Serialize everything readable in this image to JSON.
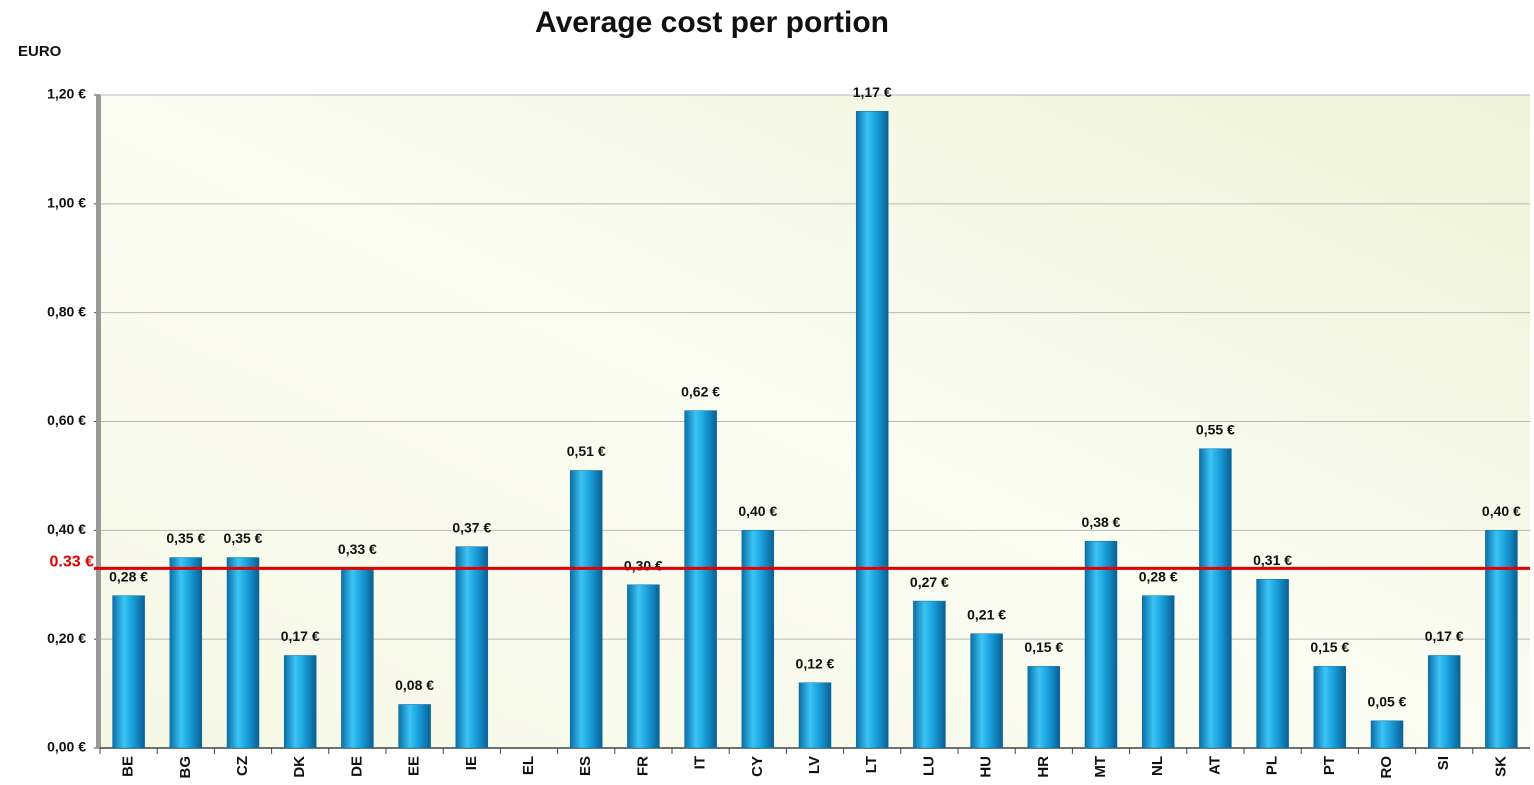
{
  "chart_data": {
    "type": "bar",
    "title": "Average cost per portion",
    "y_axis_label": "EURO",
    "categories": [
      "BE",
      "BG",
      "CZ",
      "DK",
      "DE",
      "EE",
      "IE",
      "EL",
      "ES",
      "FR",
      "IT",
      "CY",
      "LV",
      "LT",
      "LU",
      "HU",
      "HR",
      "MT",
      "NL",
      "AT",
      "PL",
      "PT",
      "RO",
      "SI",
      "SK"
    ],
    "values": [
      0.28,
      0.35,
      0.35,
      0.17,
      0.33,
      0.08,
      0.37,
      null,
      0.51,
      0.3,
      0.62,
      0.4,
      0.12,
      1.17,
      0.27,
      0.21,
      0.15,
      0.38,
      0.28,
      0.55,
      0.31,
      0.15,
      0.05,
      0.17,
      0.4
    ],
    "value_labels": [
      "0,28 €",
      "0,35 €",
      "0,35 €",
      "0,17 €",
      "0,33 €",
      "0,08 €",
      "0,37 €",
      null,
      "0,51 €",
      "0,30 €",
      "0,62 €",
      "0,40 €",
      "0,12 €",
      "1,17 €",
      "0,27 €",
      "0,21 €",
      "0,15 €",
      "0,38 €",
      "0,28 €",
      "0,55 €",
      "0,31 €",
      "0,15 €",
      "0,05 €",
      "0,17 €",
      "0,40 €"
    ],
    "color": "#1aa3e0",
    "ylim": [
      0,
      1.2
    ],
    "yticks": [
      {
        "value": 0,
        "label": "0,00 €"
      },
      {
        "value": 0.2,
        "label": "0,20 €"
      },
      {
        "value": 0.4,
        "label": "0,40 €"
      },
      {
        "value": 0.6,
        "label": "0,60 €"
      },
      {
        "value": 0.8,
        "label": "0,80 €"
      },
      {
        "value": 1.0,
        "label": "1,00 €"
      },
      {
        "value": 1.2,
        "label": "1,20 €"
      }
    ],
    "grid": true,
    "reference_line": {
      "value": 0.33,
      "label": "0.33 €",
      "color": "#e00000"
    }
  }
}
